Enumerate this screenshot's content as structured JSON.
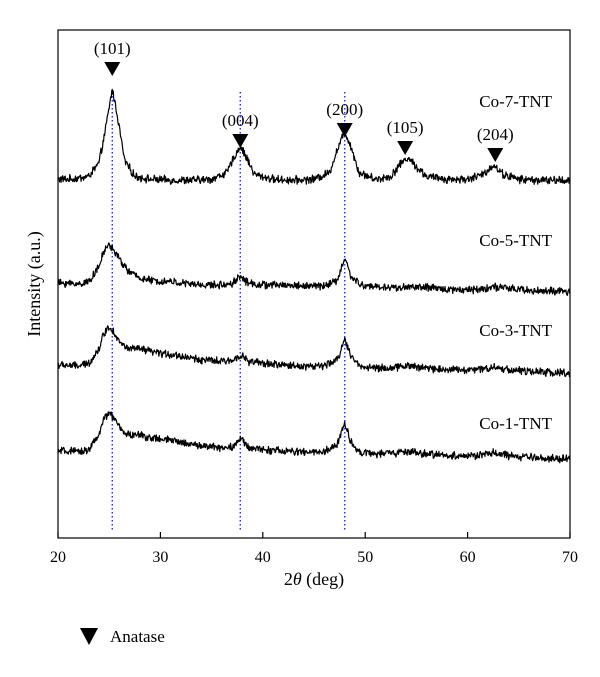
{
  "chart_data": {
    "type": "line",
    "xlabel": "2θ (deg)",
    "xlabel_parts": {
      "prefix": "2",
      "symbol": "θ",
      "suffix": " (deg)"
    },
    "ylabel": "Intensity (a.u.)",
    "xlim": [
      20,
      70
    ],
    "xticks": [
      20,
      30,
      40,
      50,
      60,
      70
    ],
    "yticks": [],
    "grid": false,
    "legend": {
      "marker": "down-triangle",
      "label": "Anatase",
      "placement": "below plot, left"
    },
    "reference_lines": [
      {
        "x": 25.3,
        "style": "dotted",
        "color": "#2d2dcc"
      },
      {
        "x": 37.8,
        "style": "dotted",
        "color": "#2d2dcc"
      },
      {
        "x": 48.0,
        "style": "dotted",
        "color": "#2d2dcc"
      }
    ],
    "peak_labels": [
      {
        "label": "(101)",
        "x": 25.3
      },
      {
        "label": "(004)",
        "x": 37.8
      },
      {
        "label": "(200)",
        "x": 48.0
      },
      {
        "label": "(105)",
        "x": 53.9
      },
      {
        "label": "(204)",
        "x": 62.7
      }
    ],
    "series": [
      {
        "name": "Co-7-TNT",
        "color": "#000000",
        "baseline": 0,
        "points": [
          [
            20.0,
            0.05
          ],
          [
            21.0,
            0.05
          ],
          [
            22.0,
            0.06
          ],
          [
            23.0,
            0.08
          ],
          [
            24.0,
            0.22
          ],
          [
            24.6,
            0.55
          ],
          [
            25.3,
            1.0
          ],
          [
            25.8,
            0.72
          ],
          [
            26.5,
            0.25
          ],
          [
            27.5,
            0.08
          ],
          [
            29.0,
            0.05
          ],
          [
            31.0,
            0.04
          ],
          [
            33.0,
            0.04
          ],
          [
            35.0,
            0.05
          ],
          [
            36.5,
            0.12
          ],
          [
            37.2,
            0.28
          ],
          [
            37.8,
            0.4
          ],
          [
            38.4,
            0.28
          ],
          [
            39.2,
            0.1
          ],
          [
            41.0,
            0.05
          ],
          [
            43.0,
            0.04
          ],
          [
            45.0,
            0.05
          ],
          [
            46.5,
            0.12
          ],
          [
            47.4,
            0.4
          ],
          [
            48.0,
            0.55
          ],
          [
            48.6,
            0.4
          ],
          [
            49.4,
            0.12
          ],
          [
            51.0,
            0.05
          ],
          [
            52.5,
            0.08
          ],
          [
            53.5,
            0.22
          ],
          [
            54.2,
            0.28
          ],
          [
            55.0,
            0.18
          ],
          [
            56.0,
            0.08
          ],
          [
            58.0,
            0.05
          ],
          [
            60.0,
            0.05
          ],
          [
            61.5,
            0.1
          ],
          [
            62.5,
            0.2
          ],
          [
            63.5,
            0.1
          ],
          [
            65.0,
            0.05
          ],
          [
            67.0,
            0.04
          ],
          [
            70.0,
            0.04
          ]
        ]
      },
      {
        "name": "Co-5-TNT",
        "color": "#000000",
        "baseline": 0,
        "points": [
          [
            20.0,
            0.12
          ],
          [
            21.0,
            0.12
          ],
          [
            22.0,
            0.11
          ],
          [
            23.0,
            0.14
          ],
          [
            24.0,
            0.3
          ],
          [
            24.5,
            0.48
          ],
          [
            25.0,
            0.55
          ],
          [
            25.5,
            0.48
          ],
          [
            26.2,
            0.35
          ],
          [
            27.0,
            0.24
          ],
          [
            28.0,
            0.18
          ],
          [
            29.0,
            0.15
          ],
          [
            30.0,
            0.14
          ],
          [
            31.0,
            0.14
          ],
          [
            32.0,
            0.12
          ],
          [
            33.0,
            0.11
          ],
          [
            34.0,
            0.1
          ],
          [
            35.0,
            0.1
          ],
          [
            36.0,
            0.1
          ],
          [
            37.0,
            0.12
          ],
          [
            37.8,
            0.2
          ],
          [
            38.6,
            0.12
          ],
          [
            40.0,
            0.1
          ],
          [
            42.0,
            0.1
          ],
          [
            44.0,
            0.09
          ],
          [
            46.0,
            0.09
          ],
          [
            47.3,
            0.15
          ],
          [
            48.0,
            0.4
          ],
          [
            48.6,
            0.2
          ],
          [
            49.5,
            0.1
          ],
          [
            51.0,
            0.08
          ],
          [
            53.0,
            0.07
          ],
          [
            55.0,
            0.08
          ],
          [
            57.0,
            0.06
          ],
          [
            59.0,
            0.05
          ],
          [
            61.0,
            0.05
          ],
          [
            62.5,
            0.08
          ],
          [
            64.0,
            0.06
          ],
          [
            66.0,
            0.04
          ],
          [
            68.0,
            0.03
          ],
          [
            70.0,
            0.02
          ]
        ]
      },
      {
        "name": "Co-3-TNT",
        "color": "#000000",
        "baseline": 0,
        "points": [
          [
            20.0,
            0.12
          ],
          [
            21.0,
            0.12
          ],
          [
            22.0,
            0.11
          ],
          [
            23.0,
            0.14
          ],
          [
            24.0,
            0.3
          ],
          [
            24.5,
            0.48
          ],
          [
            25.0,
            0.55
          ],
          [
            25.5,
            0.48
          ],
          [
            26.2,
            0.35
          ],
          [
            27.0,
            0.3
          ],
          [
            28.0,
            0.3
          ],
          [
            29.0,
            0.27
          ],
          [
            30.0,
            0.25
          ],
          [
            31.0,
            0.24
          ],
          [
            32.0,
            0.22
          ],
          [
            33.0,
            0.2
          ],
          [
            34.0,
            0.18
          ],
          [
            35.0,
            0.17
          ],
          [
            36.0,
            0.16
          ],
          [
            37.0,
            0.17
          ],
          [
            37.8,
            0.24
          ],
          [
            38.6,
            0.16
          ],
          [
            40.0,
            0.14
          ],
          [
            42.0,
            0.12
          ],
          [
            44.0,
            0.11
          ],
          [
            46.0,
            0.11
          ],
          [
            47.3,
            0.18
          ],
          [
            48.0,
            0.42
          ],
          [
            48.6,
            0.22
          ],
          [
            49.5,
            0.11
          ],
          [
            51.0,
            0.09
          ],
          [
            53.0,
            0.09
          ],
          [
            54.0,
            0.12
          ],
          [
            55.0,
            0.1
          ],
          [
            57.0,
            0.08
          ],
          [
            59.0,
            0.07
          ],
          [
            61.0,
            0.07
          ],
          [
            62.5,
            0.1
          ],
          [
            64.0,
            0.07
          ],
          [
            66.0,
            0.05
          ],
          [
            68.0,
            0.04
          ],
          [
            70.0,
            0.03
          ]
        ]
      },
      {
        "name": "Co-1-TNT",
        "color": "#000000",
        "baseline": 0,
        "points": [
          [
            20.0,
            0.12
          ],
          [
            21.0,
            0.12
          ],
          [
            22.0,
            0.11
          ],
          [
            23.0,
            0.14
          ],
          [
            24.0,
            0.3
          ],
          [
            24.5,
            0.48
          ],
          [
            25.0,
            0.55
          ],
          [
            25.5,
            0.48
          ],
          [
            26.2,
            0.35
          ],
          [
            27.0,
            0.3
          ],
          [
            28.0,
            0.3
          ],
          [
            29.0,
            0.27
          ],
          [
            30.0,
            0.25
          ],
          [
            31.0,
            0.24
          ],
          [
            32.0,
            0.22
          ],
          [
            33.0,
            0.2
          ],
          [
            34.0,
            0.18
          ],
          [
            35.0,
            0.17
          ],
          [
            36.0,
            0.16
          ],
          [
            37.0,
            0.17
          ],
          [
            37.8,
            0.26
          ],
          [
            38.6,
            0.16
          ],
          [
            40.0,
            0.14
          ],
          [
            42.0,
            0.12
          ],
          [
            44.0,
            0.11
          ],
          [
            46.0,
            0.11
          ],
          [
            47.3,
            0.2
          ],
          [
            48.0,
            0.44
          ],
          [
            48.6,
            0.22
          ],
          [
            49.5,
            0.11
          ],
          [
            51.0,
            0.09
          ],
          [
            53.0,
            0.1
          ],
          [
            54.0,
            0.12
          ],
          [
            55.0,
            0.1
          ],
          [
            57.0,
            0.08
          ],
          [
            59.0,
            0.07
          ],
          [
            61.0,
            0.07
          ],
          [
            62.5,
            0.1
          ],
          [
            64.0,
            0.07
          ],
          [
            66.0,
            0.05
          ],
          [
            68.0,
            0.04
          ],
          [
            70.0,
            0.03
          ]
        ]
      }
    ]
  }
}
